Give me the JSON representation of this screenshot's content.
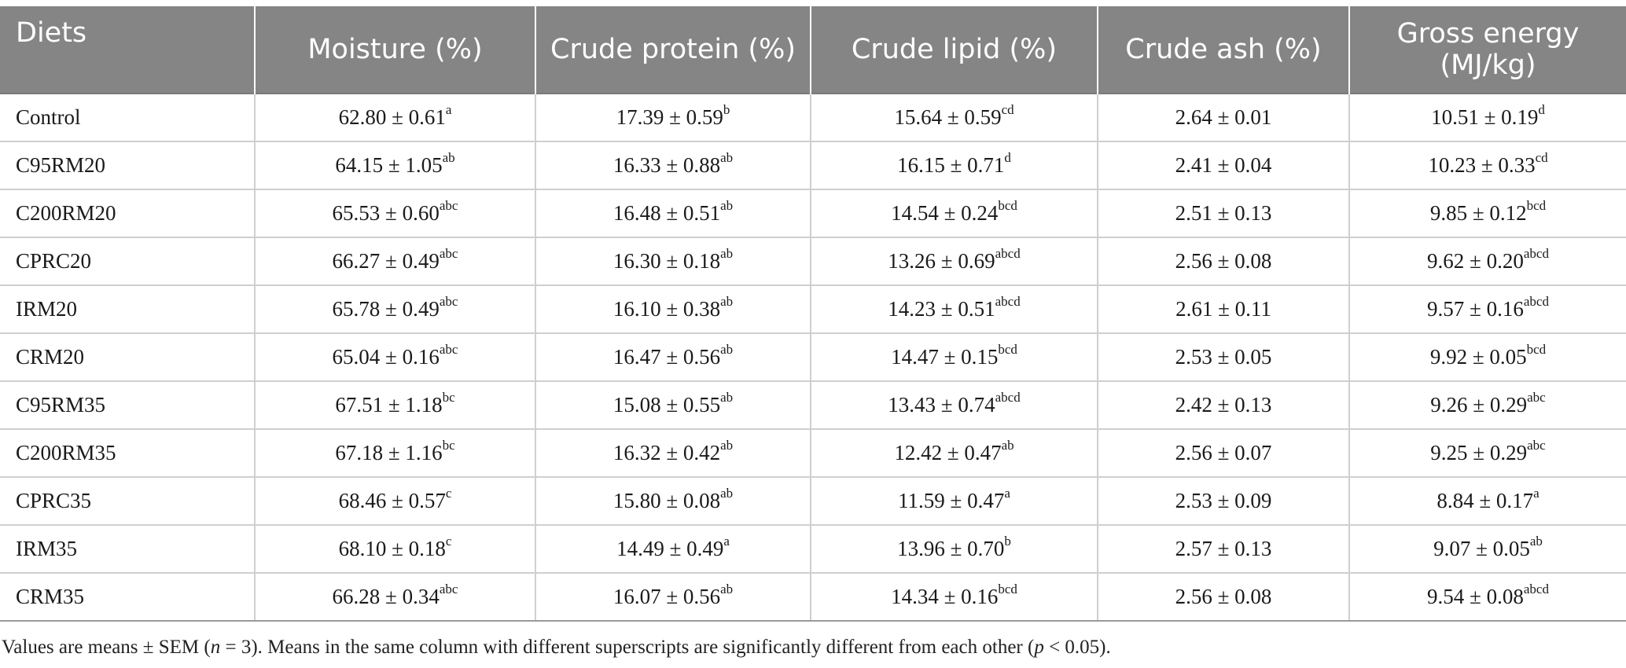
{
  "table": {
    "headers": [
      "Diets",
      "Moisture (%)",
      "Crude protein (%)",
      "Crude lipid (%)",
      "Crude ash (%)",
      "Gross energy (MJ/kg)"
    ],
    "rows": [
      {
        "diet": "Control",
        "moisture": {
          "v": "62.80 ± 0.61",
          "s": "a"
        },
        "protein": {
          "v": "17.39 ± 0.59",
          "s": "b"
        },
        "lipid": {
          "v": "15.64 ± 0.59",
          "s": "cd"
        },
        "ash": {
          "v": "2.64 ± 0.01",
          "s": ""
        },
        "energy": {
          "v": "10.51 ± 0.19",
          "s": "d"
        }
      },
      {
        "diet": "C95RM20",
        "moisture": {
          "v": "64.15 ± 1.05",
          "s": "ab"
        },
        "protein": {
          "v": "16.33 ± 0.88",
          "s": "ab"
        },
        "lipid": {
          "v": "16.15 ± 0.71",
          "s": "d"
        },
        "ash": {
          "v": "2.41 ± 0.04",
          "s": ""
        },
        "energy": {
          "v": "10.23 ± 0.33",
          "s": "cd"
        }
      },
      {
        "diet": "C200RM20",
        "moisture": {
          "v": "65.53 ± 0.60",
          "s": "abc"
        },
        "protein": {
          "v": "16.48 ± 0.51",
          "s": "ab"
        },
        "lipid": {
          "v": "14.54 ± 0.24",
          "s": "bcd"
        },
        "ash": {
          "v": "2.51 ± 0.13",
          "s": ""
        },
        "energy": {
          "v": "9.85 ± 0.12",
          "s": "bcd"
        }
      },
      {
        "diet": "CPRC20",
        "moisture": {
          "v": "66.27 ± 0.49",
          "s": "abc"
        },
        "protein": {
          "v": "16.30 ± 0.18",
          "s": "ab"
        },
        "lipid": {
          "v": "13.26 ± 0.69",
          "s": "abcd"
        },
        "ash": {
          "v": "2.56 ± 0.08",
          "s": ""
        },
        "energy": {
          "v": "9.62 ± 0.20",
          "s": "abcd"
        }
      },
      {
        "diet": "IRM20",
        "moisture": {
          "v": "65.78 ± 0.49",
          "s": "abc"
        },
        "protein": {
          "v": "16.10 ± 0.38",
          "s": "ab"
        },
        "lipid": {
          "v": "14.23 ± 0.51",
          "s": "abcd"
        },
        "ash": {
          "v": "2.61 ± 0.11",
          "s": ""
        },
        "energy": {
          "v": "9.57 ± 0.16",
          "s": "abcd"
        }
      },
      {
        "diet": "CRM20",
        "moisture": {
          "v": "65.04 ± 0.16",
          "s": "abc"
        },
        "protein": {
          "v": "16.47 ± 0.56",
          "s": "ab"
        },
        "lipid": {
          "v": "14.47 ± 0.15",
          "s": "bcd"
        },
        "ash": {
          "v": "2.53 ± 0.05",
          "s": ""
        },
        "energy": {
          "v": "9.92 ± 0.05",
          "s": "bcd"
        }
      },
      {
        "diet": "C95RM35",
        "moisture": {
          "v": "67.51 ± 1.18",
          "s": "bc"
        },
        "protein": {
          "v": "15.08 ± 0.55",
          "s": "ab"
        },
        "lipid": {
          "v": "13.43 ± 0.74",
          "s": "abcd"
        },
        "ash": {
          "v": "2.42 ± 0.13",
          "s": ""
        },
        "energy": {
          "v": "9.26 ± 0.29",
          "s": "abc"
        }
      },
      {
        "diet": "C200RM35",
        "moisture": {
          "v": "67.18 ± 1.16",
          "s": "bc"
        },
        "protein": {
          "v": "16.32 ± 0.42",
          "s": "ab"
        },
        "lipid": {
          "v": "12.42 ± 0.47",
          "s": "ab"
        },
        "ash": {
          "v": "2.56 ± 0.07",
          "s": ""
        },
        "energy": {
          "v": "9.25 ± 0.29",
          "s": "abc"
        }
      },
      {
        "diet": "CPRC35",
        "moisture": {
          "v": "68.46 ± 0.57",
          "s": "c"
        },
        "protein": {
          "v": "15.80 ± 0.08",
          "s": "ab"
        },
        "lipid": {
          "v": "11.59 ± 0.47",
          "s": "a"
        },
        "ash": {
          "v": "2.53 ± 0.09",
          "s": ""
        },
        "energy": {
          "v": "8.84 ± 0.17",
          "s": "a"
        }
      },
      {
        "diet": "IRM35",
        "moisture": {
          "v": "68.10 ± 0.18",
          "s": "c"
        },
        "protein": {
          "v": "14.49 ± 0.49",
          "s": "a"
        },
        "lipid": {
          "v": "13.96 ± 0.70",
          "s": "b"
        },
        "ash": {
          "v": "2.57 ± 0.13",
          "s": ""
        },
        "energy": {
          "v": "9.07 ± 0.05",
          "s": "ab"
        }
      },
      {
        "diet": "CRM35",
        "moisture": {
          "v": "66.28 ± 0.34",
          "s": "abc"
        },
        "protein": {
          "v": "16.07 ± 0.56",
          "s": "ab"
        },
        "lipid": {
          "v": "14.34 ± 0.16",
          "s": "bcd"
        },
        "ash": {
          "v": "2.56 ± 0.08",
          "s": ""
        },
        "energy": {
          "v": "9.54 ± 0.08",
          "s": "abcd"
        }
      }
    ]
  },
  "footnote": {
    "part1": "Values are means ± SEM (",
    "n_var": "n",
    "part2": " = 3). Means in the same column with different superscripts are significantly different from each other (",
    "p_var": "p",
    "part3": " < 0.05)."
  },
  "colors": {
    "header_bg": "#858585",
    "header_text": "#ffffff",
    "grid_line": "#cfcfcf"
  }
}
